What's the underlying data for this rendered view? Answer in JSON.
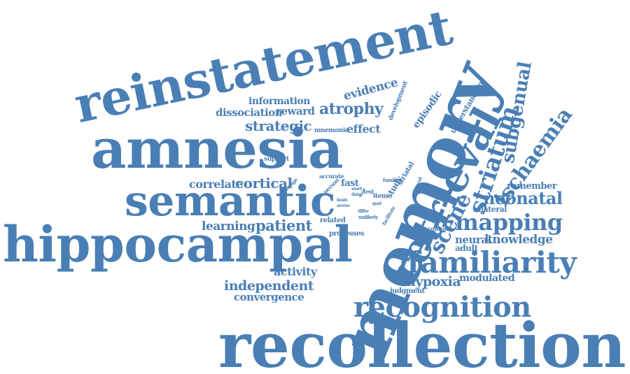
{
  "style": {
    "word_color": "#4a7fb5",
    "background": "#ffffff"
  },
  "words": {
    "reinstatement": "reinstatement",
    "amnesia": "amnesia",
    "memory": "memory",
    "semantic": "semantic",
    "hippocampal": "hippocampal",
    "recollection": "recollection",
    "retrieval": "retrieval",
    "familiarity": "familiarity",
    "recognition": "recognition",
    "mapping": "mapping",
    "striatum": "striatum",
    "ischaemia": "ischaemia",
    "subgenual": "subgenual",
    "neonatal": "neonatal",
    "scene": "scene",
    "episodic": "episodic",
    "understanding": "understanding",
    "evidence": "evidence",
    "development": "development",
    "information": "information",
    "dissociation": "dissociation",
    "reward": "reward",
    "atrophy": "atrophy",
    "strategic": "strategic",
    "effect": "effect",
    "mnemonic": "mnemonic",
    "support": "support",
    "correlate": "correlate",
    "cortical": "cortical",
    "learning": "learning",
    "patient": "patient",
    "activity": "activity",
    "independent": "independent",
    "convergence": "convergence",
    "hypoxia": "hypoxia",
    "modulated": "modulated",
    "judgment": "judgment",
    "knowledge": "knowledge",
    "neural": "neural",
    "adult": "adult",
    "bilateral": "bilateral",
    "remember": "remember",
    "contrast": "contrast",
    "processes": "processes",
    "related": "related",
    "accurate": "accurate",
    "person": "person",
    "fast": "fast",
    "damage": "damage",
    "study": "study",
    "striatal": "striatal",
    "familiar": "familiar",
    "control": "control",
    "item": "item",
    "test": "test",
    "word": "word",
    "data": "data",
    "brain": "brain",
    "severe": "severe",
    "goal": "goal",
    "facilitate": "facilitate",
    "differ": "differ",
    "unlikely": "unlikely",
    "signal": "signal"
  }
}
